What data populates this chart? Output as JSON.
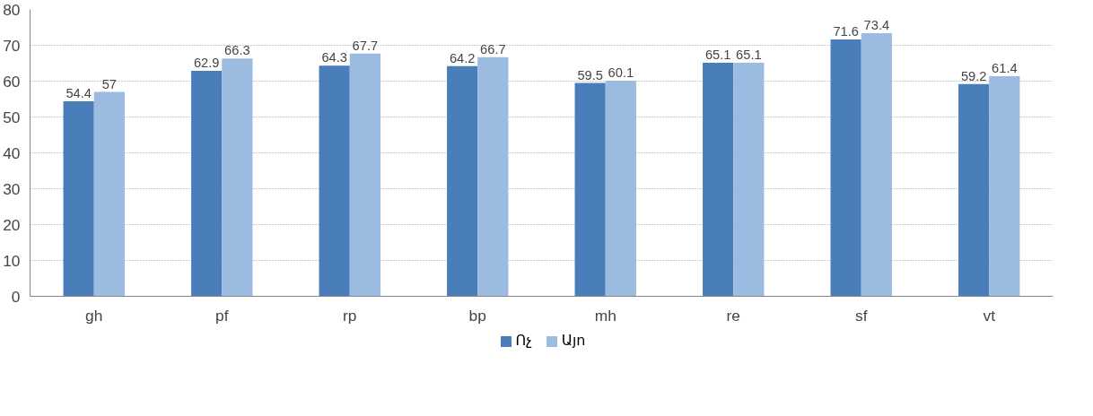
{
  "chart_data": {
    "type": "bar",
    "categories": [
      "gh",
      "pf",
      "rp",
      "bp",
      "mh",
      "re",
      "sf",
      "vt"
    ],
    "series": [
      {
        "name": "Ոչ",
        "color": "#4a7ebb",
        "values": [
          54.4,
          62.9,
          64.3,
          64.2,
          59.5,
          65.1,
          71.6,
          59.2
        ]
      },
      {
        "name": "Այո",
        "color": "#9cbbe1",
        "values": [
          57,
          66.3,
          67.7,
          66.7,
          60.1,
          65.1,
          73.4,
          61.4
        ]
      }
    ],
    "ylim": [
      0,
      80
    ],
    "yticks": [
      0,
      10,
      20,
      30,
      40,
      50,
      60,
      70,
      80
    ],
    "grid": "y",
    "legend": "bottom",
    "data_labels": true
  }
}
